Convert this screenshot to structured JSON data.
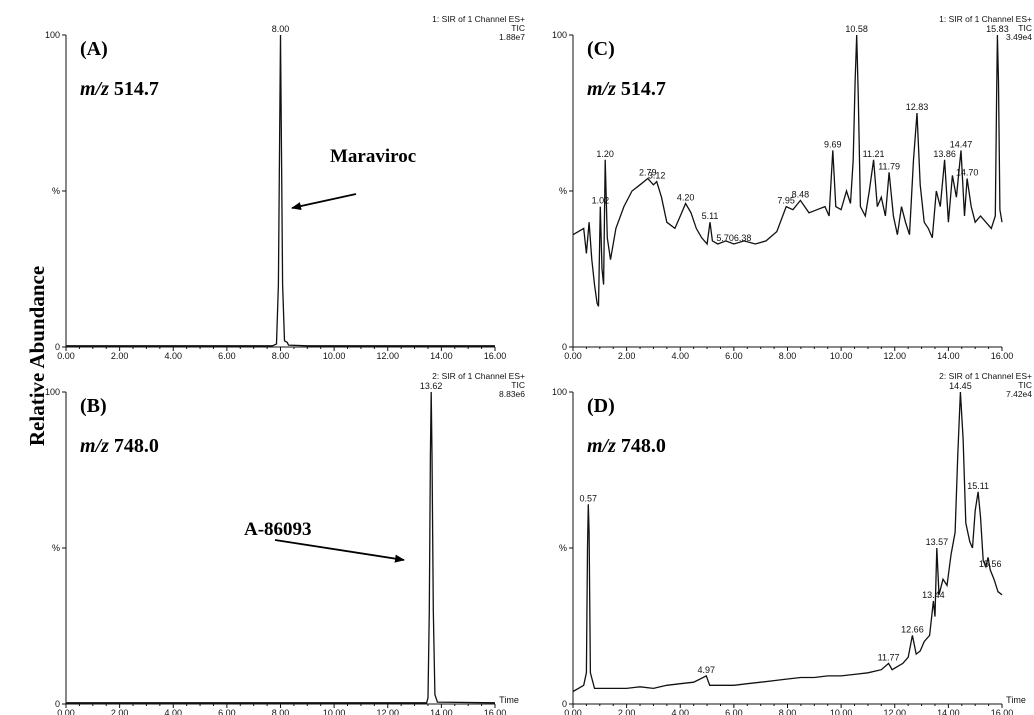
{
  "figure": {
    "y_axis_label": "Relative Abundance"
  },
  "chart_data": [
    {
      "type": "line",
      "panel": "(A)",
      "mz_prefix": "m/z",
      "mz_value": "514.7",
      "header": [
        "1: SIR of 1 Channel ES+",
        "TIC",
        "1.88e7"
      ],
      "xlim": [
        0,
        16
      ],
      "ylim": [
        0,
        100
      ],
      "x_ticks": [
        "0.00",
        "2.00",
        "4.00",
        "6.00",
        "8.00",
        "10.00",
        "12.00",
        "14.00",
        "16.00"
      ],
      "y_ticks": [
        "0",
        "%",
        "100"
      ],
      "x_unit": "",
      "annotation": "Maraviroc",
      "peak_labels": [
        {
          "x": 8.0,
          "text": "8.00"
        }
      ],
      "points": [
        [
          0,
          0.4
        ],
        [
          2,
          0.4
        ],
        [
          4,
          0.4
        ],
        [
          6,
          0.4
        ],
        [
          7.7,
          0.4
        ],
        [
          7.85,
          1
        ],
        [
          7.92,
          20
        ],
        [
          7.97,
          70
        ],
        [
          8.0,
          100
        ],
        [
          8.03,
          70
        ],
        [
          8.08,
          20
        ],
        [
          8.15,
          2
        ],
        [
          8.25,
          1.5
        ],
        [
          8.3,
          0.6
        ],
        [
          9,
          0.4
        ],
        [
          12,
          0.4
        ],
        [
          16,
          0.4
        ]
      ]
    },
    {
      "type": "line",
      "panel": "(B)",
      "mz_prefix": "m/z",
      "mz_value": "748.0",
      "header": [
        "2: SIR of 1 Channel ES+",
        "TIC",
        "8.83e6"
      ],
      "xlim": [
        0,
        16
      ],
      "ylim": [
        0,
        100
      ],
      "x_ticks": [
        "0.00",
        "2.00",
        "4.00",
        "6.00",
        "8.00",
        "10.00",
        "12.00",
        "14.00",
        "16.00"
      ],
      "y_ticks": [
        "0",
        "%",
        "100"
      ],
      "x_unit": "Time",
      "annotation": "A-86093",
      "peak_labels": [
        {
          "x": 13.62,
          "text": "13.62"
        }
      ],
      "points": [
        [
          0,
          0.4
        ],
        [
          4,
          0.4
        ],
        [
          8,
          0.4
        ],
        [
          12,
          0.4
        ],
        [
          13.45,
          0.4
        ],
        [
          13.5,
          2
        ],
        [
          13.55,
          30
        ],
        [
          13.59,
          80
        ],
        [
          13.62,
          100
        ],
        [
          13.65,
          80
        ],
        [
          13.7,
          30
        ],
        [
          13.76,
          3
        ],
        [
          13.85,
          0.6
        ],
        [
          16,
          0.4
        ]
      ]
    },
    {
      "type": "line",
      "panel": "(C)",
      "mz_prefix": "m/z",
      "mz_value": "514.7",
      "header": [
        "1: SIR of 1 Channel ES+",
        "TIC",
        "3.49e4"
      ],
      "xlim": [
        0,
        16
      ],
      "ylim": [
        0,
        100
      ],
      "x_ticks": [
        "0.00",
        "2.00",
        "4.00",
        "6.00",
        "8.00",
        "10.00",
        "12.00",
        "14.00",
        "16.00"
      ],
      "y_ticks": [
        "0",
        "%",
        "100"
      ],
      "x_unit": "",
      "peak_labels": [
        {
          "x": 1.02,
          "text": "1.02"
        },
        {
          "x": 1.2,
          "text": "1.20"
        },
        {
          "x": 2.79,
          "text": "2.79"
        },
        {
          "x": 3.12,
          "text": "3.12"
        },
        {
          "x": 4.2,
          "text": "4.20"
        },
        {
          "x": 5.11,
          "text": "5.11"
        },
        {
          "x": 6.0,
          "text": "5.706.38"
        },
        {
          "x": 7.95,
          "text": "7.95"
        },
        {
          "x": 8.48,
          "text": "8.48"
        },
        {
          "x": 9.69,
          "text": "9.69"
        },
        {
          "x": 10.58,
          "text": "10.58"
        },
        {
          "x": 11.21,
          "text": "11.21"
        },
        {
          "x": 11.79,
          "text": "11.79"
        },
        {
          "x": 12.83,
          "text": "12.83"
        },
        {
          "x": 13.86,
          "text": "13.86"
        },
        {
          "x": 14.47,
          "text": "14.47"
        },
        {
          "x": 14.7,
          "text": "14.70"
        },
        {
          "x": 15.83,
          "text": "15.83"
        }
      ],
      "points": [
        [
          0,
          36
        ],
        [
          0.2,
          37
        ],
        [
          0.4,
          38
        ],
        [
          0.5,
          30
        ],
        [
          0.6,
          40
        ],
        [
          0.7,
          28
        ],
        [
          0.8,
          20
        ],
        [
          0.9,
          14
        ],
        [
          0.95,
          13
        ],
        [
          1.02,
          45
        ],
        [
          1.08,
          25
        ],
        [
          1.14,
          20
        ],
        [
          1.2,
          60
        ],
        [
          1.28,
          35
        ],
        [
          1.4,
          28
        ],
        [
          1.6,
          38
        ],
        [
          1.9,
          45
        ],
        [
          2.2,
          50
        ],
        [
          2.5,
          52
        ],
        [
          2.79,
          54
        ],
        [
          3.0,
          52
        ],
        [
          3.12,
          53
        ],
        [
          3.3,
          48
        ],
        [
          3.5,
          40
        ],
        [
          3.8,
          38
        ],
        [
          4.0,
          42
        ],
        [
          4.2,
          46
        ],
        [
          4.4,
          43
        ],
        [
          4.6,
          38
        ],
        [
          4.8,
          35
        ],
        [
          5.0,
          33
        ],
        [
          5.11,
          40
        ],
        [
          5.2,
          34
        ],
        [
          5.4,
          33
        ],
        [
          5.7,
          34
        ],
        [
          6.0,
          33
        ],
        [
          6.38,
          34
        ],
        [
          6.8,
          33
        ],
        [
          7.2,
          34
        ],
        [
          7.6,
          37
        ],
        [
          7.95,
          45
        ],
        [
          8.2,
          44
        ],
        [
          8.48,
          47
        ],
        [
          8.8,
          43
        ],
        [
          9.1,
          44
        ],
        [
          9.4,
          45
        ],
        [
          9.55,
          42
        ],
        [
          9.69,
          63
        ],
        [
          9.8,
          45
        ],
        [
          10.0,
          44
        ],
        [
          10.2,
          50
        ],
        [
          10.35,
          46
        ],
        [
          10.45,
          60
        ],
        [
          10.52,
          85
        ],
        [
          10.58,
          100
        ],
        [
          10.64,
          80
        ],
        [
          10.72,
          45
        ],
        [
          10.9,
          42
        ],
        [
          11.05,
          50
        ],
        [
          11.21,
          60
        ],
        [
          11.35,
          45
        ],
        [
          11.5,
          48
        ],
        [
          11.65,
          42
        ],
        [
          11.79,
          56
        ],
        [
          11.95,
          42
        ],
        [
          12.1,
          36
        ],
        [
          12.25,
          45
        ],
        [
          12.4,
          40
        ],
        [
          12.55,
          36
        ],
        [
          12.7,
          60
        ],
        [
          12.83,
          75
        ],
        [
          12.95,
          52
        ],
        [
          13.1,
          40
        ],
        [
          13.25,
          38
        ],
        [
          13.4,
          35
        ],
        [
          13.55,
          50
        ],
        [
          13.7,
          45
        ],
        [
          13.86,
          60
        ],
        [
          14.0,
          40
        ],
        [
          14.15,
          55
        ],
        [
          14.3,
          48
        ],
        [
          14.47,
          63
        ],
        [
          14.6,
          42
        ],
        [
          14.7,
          54
        ],
        [
          14.85,
          45
        ],
        [
          15.0,
          40
        ],
        [
          15.2,
          42
        ],
        [
          15.4,
          40
        ],
        [
          15.6,
          38
        ],
        [
          15.75,
          42
        ],
        [
          15.8,
          80
        ],
        [
          15.83,
          100
        ],
        [
          15.87,
          85
        ],
        [
          15.92,
          44
        ],
        [
          16.0,
          40
        ]
      ]
    },
    {
      "type": "line",
      "panel": "(D)",
      "mz_prefix": "m/z",
      "mz_value": "748.0",
      "header": [
        "2: SIR of 1 Channel ES+",
        "TIC",
        "7.42e4"
      ],
      "xlim": [
        0,
        16
      ],
      "ylim": [
        0,
        100
      ],
      "x_ticks": [
        "0.00",
        "2.00",
        "4.00",
        "6.00",
        "8.00",
        "10.00",
        "12.00",
        "14.00",
        "16.00"
      ],
      "y_ticks": [
        "0",
        "%",
        "100"
      ],
      "x_unit": "Time",
      "peak_labels": [
        {
          "x": 0.57,
          "text": "0.57"
        },
        {
          "x": 4.97,
          "text": "4.97"
        },
        {
          "x": 11.77,
          "text": "11.77"
        },
        {
          "x": 12.66,
          "text": "12.66"
        },
        {
          "x": 13.44,
          "text": "13.44"
        },
        {
          "x": 13.57,
          "text": "13.57"
        },
        {
          "x": 14.45,
          "text": "14.45"
        },
        {
          "x": 15.11,
          "text": "15.11"
        },
        {
          "x": 15.56,
          "text": "15.56"
        }
      ],
      "points": [
        [
          0,
          4
        ],
        [
          0.2,
          5
        ],
        [
          0.4,
          6
        ],
        [
          0.5,
          10
        ],
        [
          0.54,
          50
        ],
        [
          0.57,
          64
        ],
        [
          0.6,
          55
        ],
        [
          0.65,
          10
        ],
        [
          0.8,
          5
        ],
        [
          1.2,
          5
        ],
        [
          2.0,
          5
        ],
        [
          2.5,
          5.5
        ],
        [
          3.0,
          5
        ],
        [
          3.5,
          6
        ],
        [
          4.0,
          6.5
        ],
        [
          4.5,
          7
        ],
        [
          4.97,
          9
        ],
        [
          5.1,
          6
        ],
        [
          5.5,
          6
        ],
        [
          6.0,
          6
        ],
        [
          6.5,
          6.5
        ],
        [
          7.0,
          7
        ],
        [
          7.5,
          7.5
        ],
        [
          8.0,
          8
        ],
        [
          8.5,
          8.5
        ],
        [
          9.0,
          8.5
        ],
        [
          9.5,
          9
        ],
        [
          10.0,
          9
        ],
        [
          10.5,
          9.5
        ],
        [
          11.0,
          10
        ],
        [
          11.5,
          11
        ],
        [
          11.77,
          13
        ],
        [
          11.9,
          11
        ],
        [
          12.1,
          12
        ],
        [
          12.3,
          13
        ],
        [
          12.5,
          15
        ],
        [
          12.66,
          22
        ],
        [
          12.8,
          16
        ],
        [
          12.95,
          17
        ],
        [
          13.1,
          20
        ],
        [
          13.3,
          22
        ],
        [
          13.44,
          33
        ],
        [
          13.5,
          28
        ],
        [
          13.57,
          50
        ],
        [
          13.65,
          35
        ],
        [
          13.8,
          40
        ],
        [
          13.95,
          38
        ],
        [
          14.1,
          48
        ],
        [
          14.25,
          55
        ],
        [
          14.35,
          80
        ],
        [
          14.45,
          100
        ],
        [
          14.55,
          85
        ],
        [
          14.65,
          58
        ],
        [
          14.8,
          52
        ],
        [
          14.9,
          50
        ],
        [
          15.0,
          62
        ],
        [
          15.11,
          68
        ],
        [
          15.2,
          60
        ],
        [
          15.3,
          46
        ],
        [
          15.4,
          44
        ],
        [
          15.48,
          47
        ],
        [
          15.56,
          43
        ],
        [
          15.7,
          40
        ],
        [
          15.85,
          36
        ],
        [
          16.0,
          35
        ]
      ]
    }
  ]
}
